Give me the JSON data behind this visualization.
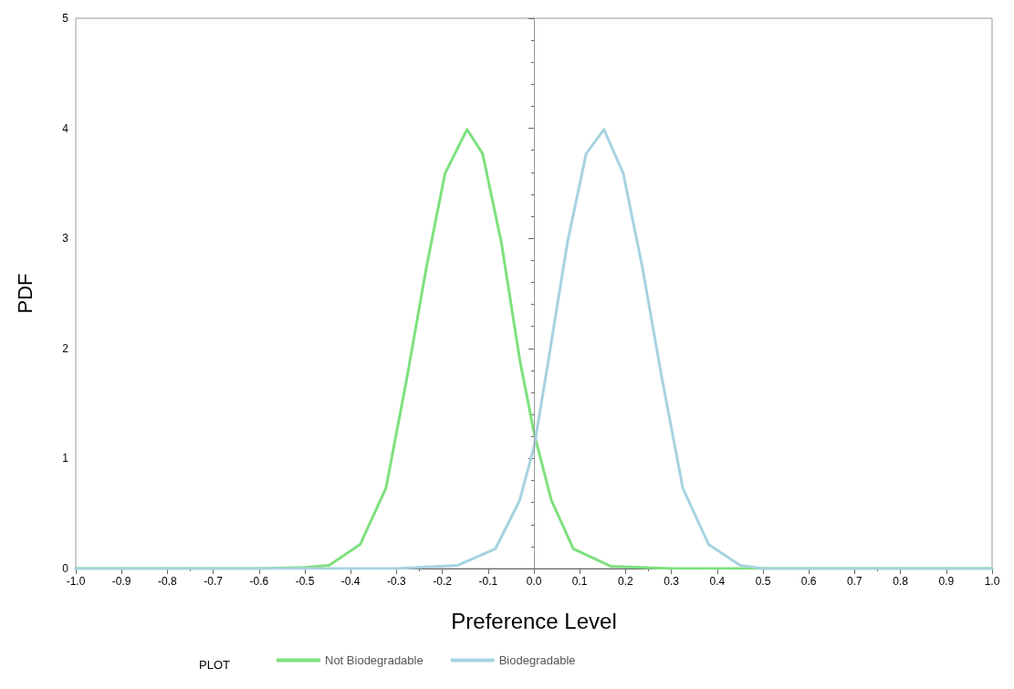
{
  "chart_data": {
    "type": "line",
    "xlabel": "Preference Level",
    "ylabel": "PDF",
    "legend_title": "PLOT",
    "legend": "bottom",
    "grid": false,
    "marker": "none",
    "line_style": "solid",
    "xlim": [
      -1.0,
      1.0
    ],
    "xticks": [
      {
        "value": -1.0,
        "label": "-1.0"
      },
      {
        "value": -0.9,
        "label": "-0.9"
      },
      {
        "value": -0.8,
        "label": "-0.8"
      },
      {
        "value": -0.7,
        "label": "-0.7"
      },
      {
        "value": -0.6,
        "label": "-0.6"
      },
      {
        "value": -0.5,
        "label": "-0.5"
      },
      {
        "value": -0.4,
        "label": "-0.4"
      },
      {
        "value": -0.3,
        "label": "-0.3"
      },
      {
        "value": -0.2,
        "label": "-0.2"
      },
      {
        "value": -0.1,
        "label": "-0.1"
      },
      {
        "value": 0,
        "label": "0.0"
      },
      {
        "value": 0.1,
        "label": "0.1"
      },
      {
        "value": 0.2,
        "label": "0.2"
      },
      {
        "value": 0.3,
        "label": "0.3"
      },
      {
        "value": 0.4,
        "label": "0.4"
      },
      {
        "value": 0.5,
        "label": "0.5"
      },
      {
        "value": 0.6,
        "label": "0.6"
      },
      {
        "value": 0.7,
        "label": "0.7"
      },
      {
        "value": 0.8,
        "label": "0.8"
      },
      {
        "value": 0.9,
        "label": "0.9"
      },
      {
        "value": 1.0,
        "label": "1.0"
      }
    ],
    "ylim": [
      0,
      5
    ],
    "yticks": [
      0,
      1,
      2,
      3,
      4,
      5
    ],
    "ref_lines": [
      {
        "axis": "x",
        "value": 0,
        "color": "#999999"
      }
    ],
    "series": [
      {
        "name": "Not Biodegradable",
        "color": "#7ee07e",
        "x": [
          -1.0,
          -0.6,
          -0.5,
          -0.447,
          -0.379,
          -0.323,
          -0.276,
          -0.235,
          -0.194,
          -0.146,
          -0.112,
          -0.071,
          -0.031,
          0.001,
          0.038,
          0.086,
          0.168,
          0.3,
          0.6,
          1.0
        ],
        "values": [
          0,
          0,
          0.01,
          0.03,
          0.22,
          0.73,
          1.76,
          2.73,
          3.59,
          3.99,
          3.77,
          2.96,
          1.9,
          1.22,
          0.62,
          0.18,
          0.02,
          0,
          0,
          0
        ]
      },
      {
        "name": "Biodegradable",
        "color": "#a6d3e0",
        "x": [
          -1.0,
          -0.5,
          -0.3,
          -0.166,
          -0.084,
          -0.031,
          0.001,
          0.032,
          0.073,
          0.114,
          0.153,
          0.195,
          0.237,
          0.278,
          0.325,
          0.381,
          0.45,
          0.5,
          0.7,
          1.0
        ],
        "values": [
          0,
          0,
          0,
          0.03,
          0.18,
          0.62,
          1.12,
          1.9,
          2.96,
          3.77,
          3.99,
          3.59,
          2.73,
          1.76,
          0.73,
          0.22,
          0.03,
          0,
          0,
          0
        ]
      }
    ]
  }
}
